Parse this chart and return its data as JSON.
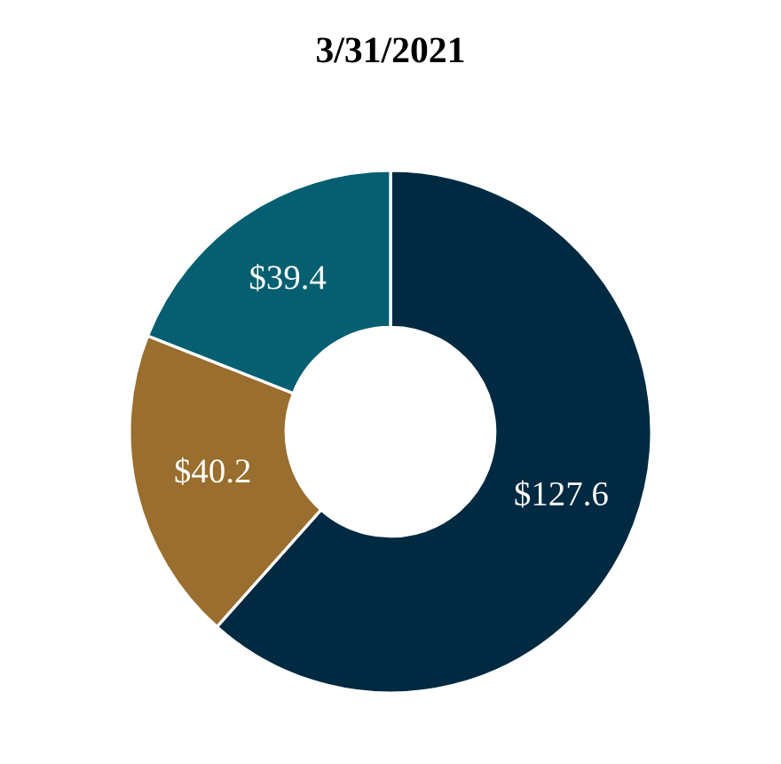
{
  "chart_data": {
    "type": "donut",
    "title": "3/31/2021",
    "categories": [
      null,
      null,
      null
    ],
    "values": [
      127.6,
      40.2,
      39.4
    ],
    "value_labels": [
      "$127.6",
      "$40.2",
      "$39.4"
    ],
    "colors": [
      "#002a42",
      "#9a6e2e",
      "#055f70"
    ],
    "legend": false
  }
}
